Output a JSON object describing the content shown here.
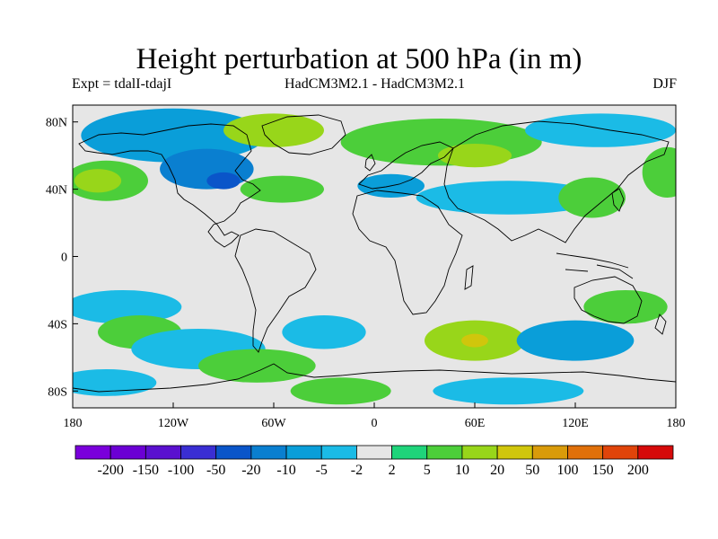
{
  "title": "Height perturbation at 500 hPa (in m)",
  "subtitle_left": "Expt = tdalI-tdajI",
  "subtitle_center": "HadCM3M2.1 - HadCM3M2.1",
  "subtitle_right": "DJF",
  "map": {
    "lon_range": [
      -180,
      180
    ],
    "lat_range": [
      -90,
      90
    ],
    "background_color": "#e6e6e6",
    "coastline_color": "#000000",
    "x_ticks": [
      {
        "lon": -180,
        "label": "180"
      },
      {
        "lon": -120,
        "label": "120W"
      },
      {
        "lon": -60,
        "label": "60W"
      },
      {
        "lon": 0,
        "label": "0"
      },
      {
        "lon": 60,
        "label": "60E"
      },
      {
        "lon": 120,
        "label": "120E"
      },
      {
        "lon": 180,
        "label": "180"
      }
    ],
    "y_ticks": [
      {
        "lat": 80,
        "label": "80N"
      },
      {
        "lat": 40,
        "label": "40N"
      },
      {
        "lat": 0,
        "label": "0"
      },
      {
        "lat": -40,
        "label": "40S"
      },
      {
        "lat": -80,
        "label": "80S"
      }
    ],
    "anomaly_regions": [
      {
        "lon": -120,
        "lat": 72,
        "rx": 55,
        "ry": 16,
        "level": -10
      },
      {
        "lon": -100,
        "lat": 52,
        "rx": 28,
        "ry": 12,
        "level": -20
      },
      {
        "lon": -90,
        "lat": 45,
        "rx": 10,
        "ry": 5,
        "level": -50
      },
      {
        "lon": -160,
        "lat": 45,
        "rx": 25,
        "ry": 12,
        "level": 5
      },
      {
        "lon": -165,
        "lat": 45,
        "rx": 14,
        "ry": 7,
        "level": 10
      },
      {
        "lon": -60,
        "lat": 75,
        "rx": 30,
        "ry": 10,
        "level": 10
      },
      {
        "lon": -55,
        "lat": 40,
        "rx": 25,
        "ry": 8,
        "level": 5
      },
      {
        "lon": 40,
        "lat": 68,
        "rx": 60,
        "ry": 14,
        "level": 5
      },
      {
        "lon": 60,
        "lat": 60,
        "rx": 22,
        "ry": 7,
        "level": 10
      },
      {
        "lon": 80,
        "lat": 35,
        "rx": 55,
        "ry": 10,
        "level": -5
      },
      {
        "lon": 135,
        "lat": 75,
        "rx": 45,
        "ry": 10,
        "level": -5
      },
      {
        "lon": 130,
        "lat": 35,
        "rx": 20,
        "ry": 12,
        "level": 5
      },
      {
        "lon": 175,
        "lat": 50,
        "rx": 15,
        "ry": 15,
        "level": 5
      },
      {
        "lon": -150,
        "lat": -30,
        "rx": 35,
        "ry": 10,
        "level": -5
      },
      {
        "lon": -140,
        "lat": -45,
        "rx": 25,
        "ry": 10,
        "level": 5
      },
      {
        "lon": -105,
        "lat": -55,
        "rx": 40,
        "ry": 12,
        "level": -5
      },
      {
        "lon": -70,
        "lat": -65,
        "rx": 35,
        "ry": 10,
        "level": 5
      },
      {
        "lon": -30,
        "lat": -45,
        "rx": 25,
        "ry": 10,
        "level": -5
      },
      {
        "lon": 60,
        "lat": -50,
        "rx": 30,
        "ry": 12,
        "level": 10
      },
      {
        "lon": 60,
        "lat": -50,
        "rx": 8,
        "ry": 4,
        "level": 20
      },
      {
        "lon": 120,
        "lat": -50,
        "rx": 35,
        "ry": 12,
        "level": -10
      },
      {
        "lon": 150,
        "lat": -30,
        "rx": 25,
        "ry": 10,
        "level": 5
      },
      {
        "lon": 80,
        "lat": -80,
        "rx": 45,
        "ry": 8,
        "level": -5
      },
      {
        "lon": -20,
        "lat": -80,
        "rx": 30,
        "ry": 8,
        "level": 5
      },
      {
        "lon": 10,
        "lat": 42,
        "rx": 20,
        "ry": 7,
        "level": -10
      },
      {
        "lon": -160,
        "lat": -75,
        "rx": 30,
        "ry": 8,
        "level": -5
      }
    ]
  },
  "colorbar": {
    "colors": [
      "#7a00db",
      "#6b00d4",
      "#5a10cf",
      "#3a2ed3",
      "#0a55c9",
      "#0a7fd0",
      "#0a9ed9",
      "#1bbbe6",
      "#e6e6e6",
      "#1fd47a",
      "#4cce3a",
      "#98d61a",
      "#d0c60c",
      "#d99b0a",
      "#e0700a",
      "#e0440a",
      "#d60a0a"
    ],
    "labels": [
      "-200",
      "-150",
      "-100",
      "-50",
      "-20",
      "-10",
      "-5",
      "-2",
      "2",
      "5",
      "10",
      "20",
      "50",
      "100",
      "150",
      "200"
    ],
    "levels": [
      -200,
      -150,
      -100,
      -50,
      -20,
      -10,
      -5,
      -2,
      2,
      5,
      10,
      20,
      50,
      100,
      150,
      200
    ]
  }
}
